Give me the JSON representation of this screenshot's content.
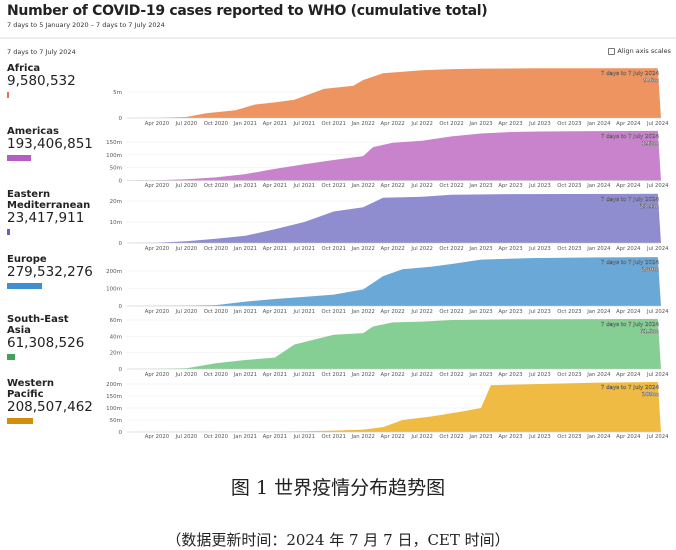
{
  "header": {
    "title": "Number of COVID-19 cases reported to WHO (cumulative total)",
    "subtitle": "7 days to 5 January 2020 – 7 days to 7 July 2024"
  },
  "period_label": "7 days to 7 July 2024",
  "align_axis": {
    "label": "Align axis scales",
    "checked": false
  },
  "chart_data": [
    {
      "type": "area",
      "region": "Africa",
      "total": "9,580,532",
      "end_label": "7 days to 7 July 2024",
      "end_value": "9.6m",
      "color": "#ee9460",
      "swatch": "#e2734a",
      "value": 9580532,
      "yticks": [
        {
          "v": 0,
          "l": "0"
        },
        {
          "v": 5,
          "l": "5m"
        }
      ],
      "points": [
        [
          "2020-01",
          0
        ],
        [
          "2020-04",
          0.02
        ],
        [
          "2020-07",
          0.2
        ],
        [
          "2020-09",
          0.9
        ],
        [
          "2020-12",
          1.5
        ],
        [
          "2021-02",
          2.6
        ],
        [
          "2021-04",
          3.0
        ],
        [
          "2021-06",
          3.5
        ],
        [
          "2021-09",
          5.6
        ],
        [
          "2021-12",
          6.2
        ],
        [
          "2022-01",
          7.3
        ],
        [
          "2022-03",
          8.6
        ],
        [
          "2022-07",
          9.2
        ],
        [
          "2022-10",
          9.4
        ],
        [
          "2023-01",
          9.5
        ],
        [
          "2023-07",
          9.55
        ],
        [
          "2024-07",
          9.58
        ]
      ]
    },
    {
      "type": "area",
      "region": "Americas",
      "total": "193,406,851",
      "end_label": "7 days to 7 July 2024",
      "end_value": "193m",
      "color": "#c883cc",
      "swatch": "#b35ec2",
      "value": 193406851,
      "yticks": [
        {
          "v": 0,
          "l": "0"
        },
        {
          "v": 50,
          "l": "50m"
        },
        {
          "v": 100,
          "l": "100m"
        },
        {
          "v": 150,
          "l": "150m"
        }
      ],
      "points": [
        [
          "2020-01",
          0
        ],
        [
          "2020-04",
          1
        ],
        [
          "2020-07",
          5
        ],
        [
          "2020-10",
          12
        ],
        [
          "2021-01",
          25
        ],
        [
          "2021-04",
          45
        ],
        [
          "2021-07",
          63
        ],
        [
          "2021-10",
          80
        ],
        [
          "2022-01",
          95
        ],
        [
          "2022-02",
          130
        ],
        [
          "2022-04",
          147
        ],
        [
          "2022-07",
          155
        ],
        [
          "2022-10",
          172
        ],
        [
          "2023-01",
          183
        ],
        [
          "2023-04",
          189
        ],
        [
          "2023-07",
          191
        ],
        [
          "2024-01",
          192.5
        ],
        [
          "2024-07",
          193.4
        ]
      ]
    },
    {
      "type": "area",
      "region": "Eastern Mediterranean",
      "total": "23,417,911",
      "end_label": "7 days to 7 July 2024",
      "end_value": "23.4m",
      "color": "#8f8dd0",
      "swatch": "#6a5fc0",
      "value": 23417911,
      "yticks": [
        {
          "v": 0,
          "l": "0"
        },
        {
          "v": 10,
          "l": "10m"
        },
        {
          "v": 20,
          "l": "20m"
        }
      ],
      "points": [
        [
          "2020-01",
          0
        ],
        [
          "2020-04",
          0.1
        ],
        [
          "2020-07",
          0.8
        ],
        [
          "2020-10",
          2
        ],
        [
          "2021-01",
          3.5
        ],
        [
          "2021-04",
          6.5
        ],
        [
          "2021-07",
          10
        ],
        [
          "2021-10",
          15
        ],
        [
          "2022-01",
          17
        ],
        [
          "2022-03",
          21.5
        ],
        [
          "2022-07",
          22
        ],
        [
          "2022-10",
          23
        ],
        [
          "2023-04",
          23.3
        ],
        [
          "2024-07",
          23.42
        ]
      ]
    },
    {
      "type": "area",
      "region": "Europe",
      "total": "279,532,276",
      "end_label": "7 days to 7 July 2024",
      "end_value": "280m",
      "color": "#6aa8d8",
      "swatch": "#3f8fd0",
      "value": 279532276,
      "yticks": [
        {
          "v": 0,
          "l": "0"
        },
        {
          "v": 100,
          "l": "100m"
        },
        {
          "v": 200,
          "l": "200m"
        }
      ],
      "points": [
        [
          "2020-01",
          0
        ],
        [
          "2020-07",
          2
        ],
        [
          "2020-10",
          5
        ],
        [
          "2021-01",
          25
        ],
        [
          "2021-04",
          40
        ],
        [
          "2021-07",
          52
        ],
        [
          "2021-10",
          65
        ],
        [
          "2022-01",
          95
        ],
        [
          "2022-03",
          170
        ],
        [
          "2022-05",
          210
        ],
        [
          "2022-08",
          225
        ],
        [
          "2022-10",
          240
        ],
        [
          "2023-01",
          265
        ],
        [
          "2023-06",
          274
        ],
        [
          "2024-01",
          278
        ],
        [
          "2024-07",
          279.5
        ]
      ]
    },
    {
      "type": "area",
      "region": "South-East Asia",
      "total": "61,308,526",
      "end_label": "7 days to 7 July 2024",
      "end_value": "61.3m",
      "color": "#86cf94",
      "swatch": "#43a05a",
      "value": 61308526,
      "yticks": [
        {
          "v": 0,
          "l": "0"
        },
        {
          "v": 20,
          "l": "20m"
        },
        {
          "v": 40,
          "l": "40m"
        },
        {
          "v": 60,
          "l": "60m"
        }
      ],
      "points": [
        [
          "2020-01",
          0
        ],
        [
          "2020-04",
          0.1
        ],
        [
          "2020-07",
          1
        ],
        [
          "2020-10",
          7
        ],
        [
          "2021-01",
          11
        ],
        [
          "2021-04",
          14
        ],
        [
          "2021-06",
          30
        ],
        [
          "2021-10",
          42
        ],
        [
          "2022-01",
          44
        ],
        [
          "2022-02",
          52
        ],
        [
          "2022-04",
          57
        ],
        [
          "2022-07",
          58
        ],
        [
          "2022-10",
          60
        ],
        [
          "2023-04",
          60.7
        ],
        [
          "2024-07",
          61.3
        ]
      ]
    },
    {
      "type": "area",
      "region": "Western Pacific",
      "total": "208,507,462",
      "end_label": "7 days to 7 July 2024",
      "end_value": "209m",
      "color": "#f0bb42",
      "swatch": "#d38f0a",
      "value": 208507462,
      "yticks": [
        {
          "v": 0,
          "l": "0"
        },
        {
          "v": 50,
          "l": "50m"
        },
        {
          "v": 100,
          "l": "100m"
        },
        {
          "v": 150,
          "l": "150m"
        },
        {
          "v": 200,
          "l": "200m"
        }
      ],
      "points": [
        [
          "2020-01",
          0
        ],
        [
          "2020-07",
          0.3
        ],
        [
          "2021-01",
          1
        ],
        [
          "2021-07",
          3
        ],
        [
          "2021-10",
          6
        ],
        [
          "2022-01",
          10
        ],
        [
          "2022-03",
          20
        ],
        [
          "2022-05",
          50
        ],
        [
          "2022-08",
          65
        ],
        [
          "2022-11",
          85
        ],
        [
          "2023-01",
          100
        ],
        [
          "2023-02",
          195
        ],
        [
          "2023-07",
          200
        ],
        [
          "2024-01",
          206
        ],
        [
          "2024-07",
          208.5
        ]
      ]
    }
  ],
  "x_axis": {
    "ticks": [
      "Apr 2020",
      "Jul 2020",
      "Oct 2020",
      "Jan 2021",
      "Apr 2021",
      "Jul 2021",
      "Oct 2021",
      "Jan 2022",
      "Apr 2022",
      "Jul 2022",
      "Oct 2022",
      "Jan 2023",
      "Apr 2023",
      "Jul 2023",
      "Oct 2023",
      "Jan 2024",
      "Apr 2024",
      "Jul 2024"
    ],
    "range": [
      "2020-01",
      "2024-07"
    ]
  },
  "caption": {
    "figure": "图 1  世界疫情分布趋势图",
    "note": "（数据更新时间：2024 年 7 月 7 日，CET 时间）"
  }
}
